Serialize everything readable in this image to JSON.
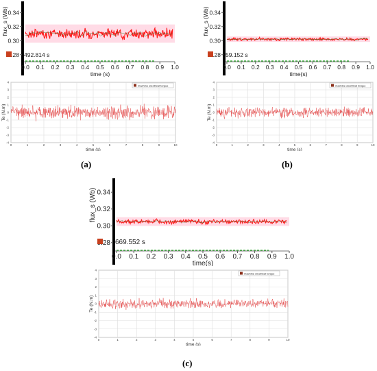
{
  "panels": [
    {
      "label": "(a)",
      "flux_time": "492.814 s",
      "flux_ylabel": "flux_s (Wb)",
      "flux_xlabel": "time (s)",
      "te_ylabel": "Te (N.m)",
      "te_xlabel": "time (s)",
      "legend": "machine electrical torque"
    },
    {
      "label": "(b)",
      "flux_time": "59.152 s",
      "flux_ylabel": "flux_s (Wb)",
      "flux_xlabel": "time(s)",
      "te_ylabel": "Te (N.m)",
      "te_xlabel": "time (s)",
      "legend": "machine electrical torque"
    },
    {
      "label": "(c)",
      "flux_time": "669.552 s",
      "flux_ylabel": "flux_s (Wb)",
      "flux_xlabel": "time(s)",
      "te_ylabel": "Te (N.m)",
      "te_xlabel": "time (s)",
      "legend": "machine electrical torque"
    }
  ],
  "chart_data": [
    {
      "type": "line",
      "panel": "(a)",
      "title": "",
      "xlabel": "time (s)",
      "ylabel": "flux_s (Wb)",
      "xlim": [
        0,
        1.0
      ],
      "ylim": [
        0.27,
        0.35
      ],
      "x_ticks": [
        "0.0",
        "0.1",
        "0.2",
        "0.3",
        "0.4",
        "0.5",
        "0.6",
        "0.7",
        "0.8",
        "0.9",
        "1.0"
      ],
      "y_ticks": [
        "0.28",
        "0.30",
        "0.32",
        "0.34"
      ],
      "series": [
        {
          "mean": 0.31,
          "amplitude": 0.01,
          "color": "#ff1a1a"
        }
      ]
    },
    {
      "type": "line",
      "panel": "(a)",
      "title": "",
      "xlabel": "time (s)",
      "ylabel": "Te (N.m)",
      "xlim": [
        0,
        10
      ],
      "ylim": [
        -4,
        4
      ],
      "x_ticks": [
        "0",
        "1",
        "2",
        "3",
        "4",
        "5",
        "6",
        "7",
        "8",
        "9",
        "10"
      ],
      "y_ticks": [
        "4",
        "3",
        "2",
        "1",
        "0",
        "-1",
        "-2",
        "-3",
        "-4"
      ],
      "series": [
        {
          "name": "machine electrical torque",
          "mean": 0.0,
          "amplitude": 1.3,
          "color": "#e03030"
        }
      ]
    },
    {
      "type": "line",
      "panel": "(b)",
      "title": "",
      "xlabel": "time(s)",
      "ylabel": "flux_s (Wb)",
      "xlim": [
        0,
        1.0
      ],
      "ylim": [
        0.27,
        0.35
      ],
      "x_ticks": [
        "0.0",
        "0.1",
        "0.2",
        "0.3",
        "0.4",
        "0.5",
        "0.6",
        "0.7",
        "0.8",
        "0.9",
        "1.0"
      ],
      "y_ticks": [
        "0.28",
        "0.30",
        "0.32",
        "0.34"
      ],
      "series": [
        {
          "mean": 0.302,
          "amplitude": 0.003,
          "color": "#ff1a1a"
        }
      ]
    },
    {
      "type": "line",
      "panel": "(b)",
      "title": "",
      "xlabel": "time (s)",
      "ylabel": "Te (N.m)",
      "xlim": [
        0,
        10
      ],
      "ylim": [
        -4,
        4
      ],
      "x_ticks": [
        "0",
        "1",
        "2",
        "3",
        "4",
        "5",
        "6",
        "7",
        "8",
        "9",
        "10"
      ],
      "y_ticks": [
        "4",
        "3",
        "2",
        "1",
        "0",
        "-1",
        "-2",
        "-3",
        "-4"
      ],
      "series": [
        {
          "name": "machine electrical torque",
          "mean": 0.0,
          "amplitude": 0.9,
          "color": "#e03030"
        }
      ]
    },
    {
      "type": "line",
      "panel": "(c)",
      "title": "",
      "xlabel": "time(s)",
      "ylabel": "flux_s (Wb)",
      "xlim": [
        0,
        1.0
      ],
      "ylim": [
        0.27,
        0.35
      ],
      "x_ticks": [
        "0.0",
        "0.1",
        "0.2",
        "0.3",
        "0.4",
        "0.5",
        "0.6",
        "0.7",
        "0.8",
        "0.9",
        "1.0"
      ],
      "y_ticks": [
        "0.28",
        "0.30",
        "0.32",
        "0.34"
      ],
      "series": [
        {
          "mean": 0.305,
          "amplitude": 0.004,
          "color": "#ff1a1a"
        }
      ]
    },
    {
      "type": "line",
      "panel": "(c)",
      "title": "",
      "xlabel": "time (s)",
      "ylabel": "Te (N.m)",
      "xlim": [
        0,
        10
      ],
      "ylim": [
        -4,
        4
      ],
      "x_ticks": [
        "0",
        "1",
        "2",
        "3",
        "4",
        "5",
        "6",
        "7",
        "8",
        "9",
        "10"
      ],
      "y_ticks": [
        "4",
        "3",
        "2",
        "1",
        "0",
        "-1",
        "-2",
        "-3",
        "-4"
      ],
      "series": [
        {
          "name": "machine electrical torque",
          "mean": 0.0,
          "amplitude": 0.8,
          "color": "#e03030"
        }
      ]
    }
  ]
}
